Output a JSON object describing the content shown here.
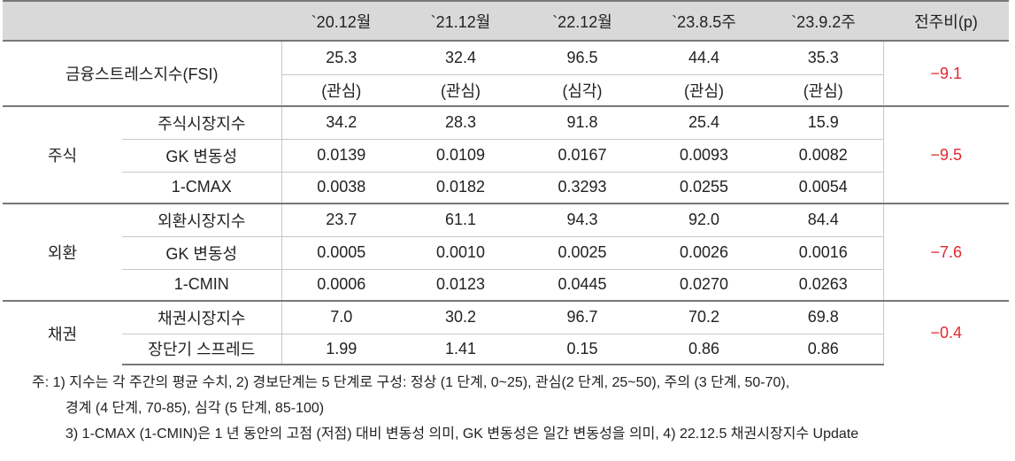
{
  "table": {
    "columns": [
      "`20.12월",
      "`21.12월",
      "`22.12월",
      "`23.8.5주",
      "`23.9.2주",
      "전주비(p)"
    ],
    "fsi": {
      "label": "금융스트레스지수(FSI)",
      "values": [
        "25.3",
        "32.4",
        "96.5",
        "44.4",
        "35.3"
      ],
      "levels": [
        "(관심)",
        "(관심)",
        "(심각)",
        "(관심)",
        "(관심)"
      ],
      "change": "−9.1"
    },
    "groups": [
      {
        "name": "주식",
        "change": "−9.5",
        "rows": [
          {
            "label": "주식시장지수",
            "values": [
              "34.2",
              "28.3",
              "91.8",
              "25.4",
              "15.9"
            ]
          },
          {
            "label": "GK 변동성",
            "values": [
              "0.0139",
              "0.0109",
              "0.0167",
              "0.0093",
              "0.0082"
            ]
          },
          {
            "label": "1-CMAX",
            "values": [
              "0.0038",
              "0.0182",
              "0.3293",
              "0.0255",
              "0.0054"
            ]
          }
        ]
      },
      {
        "name": "외환",
        "change": "−7.6",
        "rows": [
          {
            "label": "외환시장지수",
            "values": [
              "23.7",
              "61.1",
              "94.3",
              "92.0",
              "84.4"
            ]
          },
          {
            "label": "GK 변동성",
            "values": [
              "0.0005",
              "0.0010",
              "0.0025",
              "0.0026",
              "0.0016"
            ]
          },
          {
            "label": "1-CMIN",
            "values": [
              "0.0006",
              "0.0123",
              "0.0445",
              "0.0270",
              "0.0263"
            ]
          }
        ]
      },
      {
        "name": "채권",
        "change": "−0.4",
        "rows": [
          {
            "label": "채권시장지수",
            "values": [
              "7.0",
              "30.2",
              "96.7",
              "70.2",
              "69.8"
            ]
          },
          {
            "label": "장단기 스프레드",
            "values": [
              "1.99",
              "1.41",
              "0.15",
              "0.86",
              "0.86"
            ]
          }
        ]
      }
    ]
  },
  "notes": [
    "주: 1) 지수는 각 주간의 평균 수치, 2) 경보단계는 5 단계로 구성: 정상 (1 단계, 0~25), 관심(2 단계, 25~50), 주의 (3 단계, 50-70),",
    "경계 (4 단계, 70-85), 심각 (5 단계, 85-100)",
    "3) 1-CMAX (1-CMIN)은 1 년 동안의 고점 (저점) 대비 변동성 의미, GK 변동성은 일간 변동성을 의미, 4) 22.12.5 채권시장지수 Update"
  ]
}
